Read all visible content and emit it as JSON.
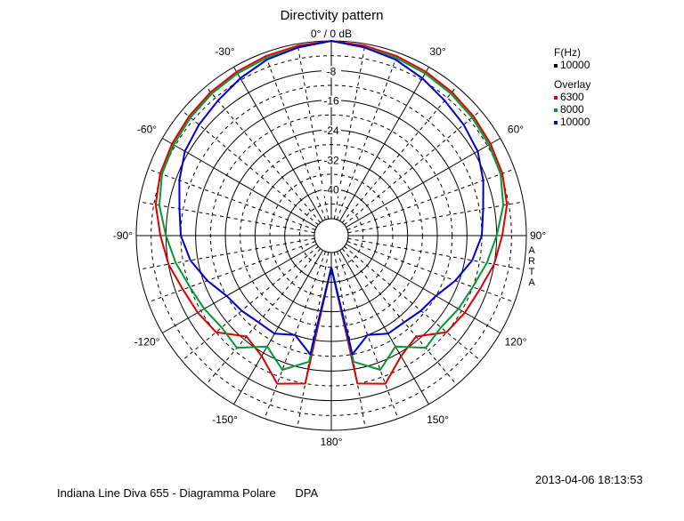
{
  "chart_data": {
    "type": "polar",
    "title": "Directivity pattern",
    "radial_ticks": [
      "0° / 0 dB",
      "-8",
      "-16",
      "-24",
      "-32",
      "-40"
    ],
    "radial_values": [
      0,
      -8,
      -16,
      -24,
      -32,
      -40
    ],
    "rlim": [
      -48,
      0
    ],
    "angle_labels": [
      {
        "angle": 0,
        "text": "0° / 0 dB"
      },
      {
        "angle": 30,
        "text": "30°"
      },
      {
        "angle": 60,
        "text": "60°"
      },
      {
        "angle": 90,
        "text": "90°"
      },
      {
        "angle": 120,
        "text": "120°"
      },
      {
        "angle": 150,
        "text": "150°"
      },
      {
        "angle": 180,
        "text": "180°"
      },
      {
        "angle": -150,
        "text": "-150°"
      },
      {
        "angle": -120,
        "text": "-120°"
      },
      {
        "angle": -90,
        "text": "-90°"
      },
      {
        "angle": -60,
        "text": "-60°"
      },
      {
        "angle": -30,
        "text": "-30°"
      }
    ],
    "angles": [
      -180,
      -170,
      -160,
      -150,
      -140,
      -130,
      -120,
      -110,
      -100,
      -90,
      -80,
      -70,
      -60,
      -50,
      -40,
      -30,
      -20,
      -10,
      0,
      10,
      20,
      30,
      40,
      50,
      60,
      70,
      80,
      90,
      100,
      110,
      120,
      130,
      140,
      150,
      160,
      170,
      180
    ],
    "series": [
      {
        "name": "6300",
        "color": "#dd0000",
        "values": [
          -44,
          -12,
          -10,
          -15,
          -17,
          -12,
          -11,
          -10,
          -8,
          -6.5,
          -4.5,
          -3.5,
          -3,
          -2.5,
          -2,
          -1.5,
          -1,
          -0.5,
          0,
          -0.5,
          -1,
          -1.5,
          -2,
          -2.5,
          -3,
          -3.5,
          -4.5,
          -6.5,
          -8,
          -10,
          -11,
          -12,
          -17,
          -15,
          -10,
          -12,
          -44
        ]
      },
      {
        "name": "8000",
        "color": "#009933",
        "values": [
          -44,
          -18,
          -14,
          -18,
          -13,
          -14,
          -13,
          -12,
          -10,
          -8,
          -5.5,
          -4,
          -3.5,
          -3,
          -2.5,
          -2,
          -1.5,
          -1,
          0,
          -1,
          -1.5,
          -2,
          -2.5,
          -3,
          -3.5,
          -4,
          -5.5,
          -8,
          -10,
          -12,
          -13,
          -14,
          -13,
          -18,
          -14,
          -18,
          -44
        ]
      },
      {
        "name": "10000",
        "color": "#0000cc",
        "values": [
          -44,
          -20,
          -24,
          -22,
          -22,
          -21,
          -20,
          -17,
          -14,
          -12,
          -11,
          -9,
          -7,
          -6,
          -5,
          -3.5,
          -2,
          -1,
          0,
          -1,
          -2,
          -3.5,
          -5,
          -6,
          -7,
          -9,
          -11,
          -12,
          -14,
          -17,
          -20,
          -21,
          -22,
          -22,
          -24,
          -20,
          -44
        ]
      }
    ]
  },
  "legend": {
    "fhz_label": "F(Hz)",
    "fhz_value": "10000",
    "overlay_label": "Overlay",
    "items": [
      {
        "label": "6300",
        "color": "#dd0000"
      },
      {
        "label": "8000",
        "color": "#009933"
      },
      {
        "label": "10000",
        "color": "#0000cc"
      }
    ]
  },
  "side_label": "ARTA",
  "footer": {
    "left": "Indiana Line Diva 655 - Diagramma Polare      DPA",
    "datetime": "2013-04-06  18:13:53"
  }
}
